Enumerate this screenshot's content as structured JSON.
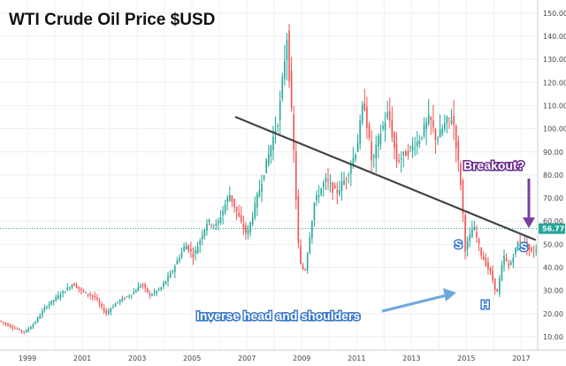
{
  "chart_data": {
    "type": "candlestick",
    "title": "WTI Crude Oil Price $USD",
    "xlabel": "",
    "ylabel": "",
    "y_axis_side": "right",
    "ylim": [
      0,
      150
    ],
    "xlim": [
      1998.0,
      2017.6
    ],
    "y_ticks": [
      10.0,
      20.0,
      30.0,
      40.0,
      50.0,
      60.0,
      70.0,
      80.0,
      90.0,
      100.0,
      110.0,
      120.0,
      130.0,
      140.0,
      150.0
    ],
    "y_tick_labels": [
      "10.00",
      "20.00",
      "30.00",
      "40.00",
      "50.00",
      "60.00",
      "70.00",
      "80.00",
      "90.00",
      "100.00",
      "110.00",
      "120.00",
      "130.00",
      "140.00",
      "150.00"
    ],
    "x_ticks": [
      1999,
      2001,
      2003,
      2005,
      2007,
      2009,
      2011,
      2013,
      2015,
      2017
    ],
    "x_tick_labels": [
      "1999",
      "2001",
      "2003",
      "2005",
      "2007",
      "2009",
      "2011",
      "2013",
      "2015",
      "2017"
    ],
    "grid": true,
    "colors": {
      "up": "#26a69a",
      "down": "#ef5350",
      "trendline": "#444444",
      "current_line": "#26a69a",
      "arrow_blue": "#6fa8dc",
      "arrow_purple": "#7b3fa0"
    },
    "current_price": 56.77,
    "current_price_label": "56.77",
    "anchors": [
      [
        1998.0,
        17
      ],
      [
        1998.5,
        14
      ],
      [
        1998.95,
        12
      ],
      [
        1999.3,
        16
      ],
      [
        1999.7,
        23
      ],
      [
        2000.0,
        26
      ],
      [
        2000.7,
        33
      ],
      [
        2001.0,
        30
      ],
      [
        2001.5,
        27
      ],
      [
        2001.9,
        20
      ],
      [
        2002.3,
        25
      ],
      [
        2002.9,
        29
      ],
      [
        2003.2,
        33
      ],
      [
        2003.5,
        28
      ],
      [
        2003.9,
        31
      ],
      [
        2004.3,
        38
      ],
      [
        2004.8,
        50
      ],
      [
        2005.1,
        45
      ],
      [
        2005.6,
        60
      ],
      [
        2005.95,
        58
      ],
      [
        2006.4,
        72
      ],
      [
        2006.8,
        60
      ],
      [
        2007.05,
        54
      ],
      [
        2007.5,
        74
      ],
      [
        2007.9,
        92
      ],
      [
        2008.2,
        105
      ],
      [
        2008.5,
        140
      ],
      [
        2008.75,
        90
      ],
      [
        2008.95,
        42
      ],
      [
        2009.15,
        38
      ],
      [
        2009.5,
        68
      ],
      [
        2009.9,
        78
      ],
      [
        2010.3,
        72
      ],
      [
        2010.7,
        80
      ],
      [
        2011.05,
        92
      ],
      [
        2011.3,
        113
      ],
      [
        2011.6,
        85
      ],
      [
        2011.9,
        98
      ],
      [
        2012.2,
        107
      ],
      [
        2012.5,
        86
      ],
      [
        2012.9,
        90
      ],
      [
        2013.3,
        95
      ],
      [
        2013.7,
        105
      ],
      [
        2013.95,
        95
      ],
      [
        2014.3,
        103
      ],
      [
        2014.55,
        105
      ],
      [
        2014.85,
        75
      ],
      [
        2015.0,
        48
      ],
      [
        2015.3,
        58
      ],
      [
        2015.6,
        45
      ],
      [
        2015.95,
        37
      ],
      [
        2016.15,
        28
      ],
      [
        2016.4,
        45
      ],
      [
        2016.6,
        40
      ],
      [
        2016.95,
        52
      ],
      [
        2017.2,
        50
      ],
      [
        2017.45,
        46
      ],
      [
        2017.55,
        48
      ]
    ],
    "annotations": [
      {
        "text": "Breakout?",
        "x": 2016.35,
        "y": 75
      },
      {
        "text": "Inverse head and shoulders",
        "x": 2009.6,
        "y": 22
      },
      {
        "text": "S",
        "x": 2015.1,
        "y": 42
      },
      {
        "text": "H",
        "x": 2016.18,
        "y": 21
      },
      {
        "text": "S",
        "x": 2017.5,
        "y": 40
      }
    ],
    "trendline": [
      [
        2006.6,
        105
      ],
      [
        2017.5,
        52
      ]
    ]
  }
}
